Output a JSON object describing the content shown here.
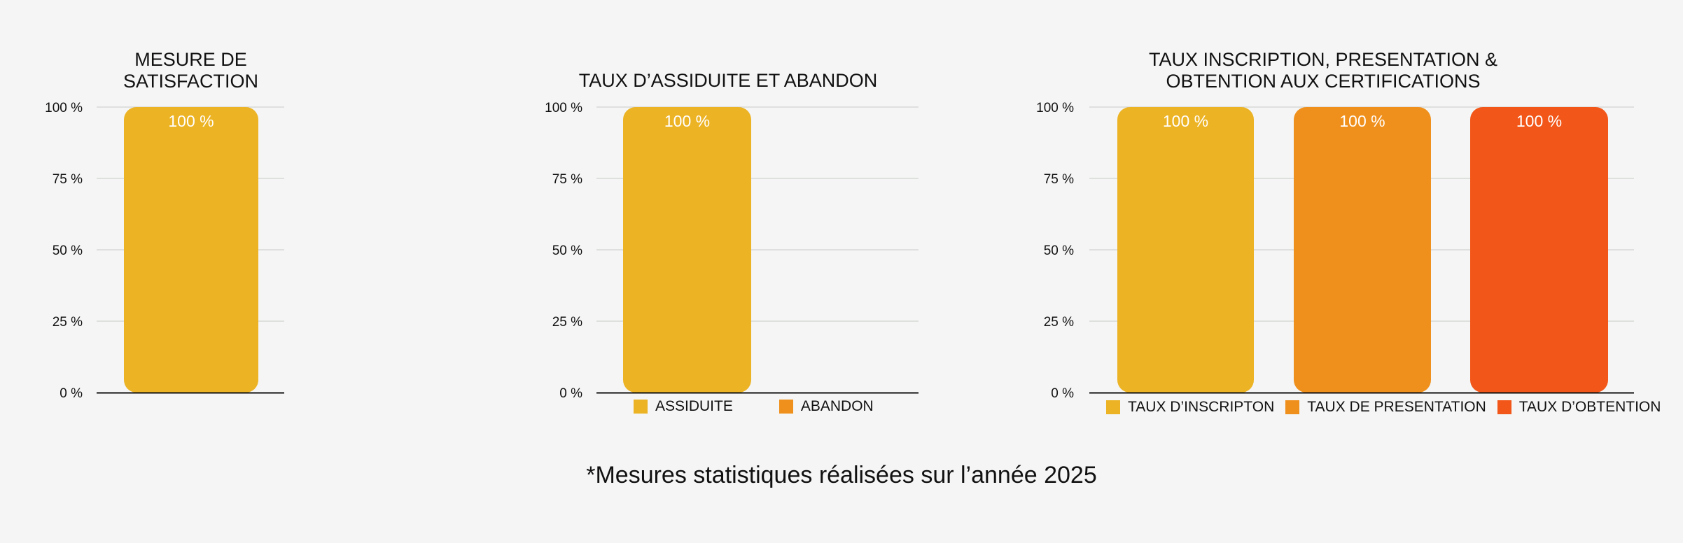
{
  "chart_data": [
    {
      "type": "bar",
      "title": "MESURE DE SATISFACTION",
      "categories": [
        "MESURE DE SATISFACTION"
      ],
      "series": [
        {
          "values": [
            100
          ]
        }
      ],
      "colors": [
        "#ecb324"
      ],
      "ylim": [
        0,
        100
      ],
      "yticks": [
        "0 %",
        "25 %",
        "50 %",
        "75 %",
        "100 %"
      ],
      "data_labels": [
        "100 %"
      ],
      "legend": [],
      "grid": true
    },
    {
      "type": "bar",
      "title": "TAUX D’ASSIDUITE ET ABANDON",
      "categories": [
        "ASSIDUITE",
        "ABANDON"
      ],
      "series": [
        {
          "values": [
            100,
            0
          ]
        }
      ],
      "colors": [
        "#ecb324",
        "#f0901c"
      ],
      "ylim": [
        0,
        100
      ],
      "yticks": [
        "0 %",
        "25 %",
        "50 %",
        "75 %",
        "100 %"
      ],
      "data_labels": [
        "100 %",
        ""
      ],
      "legend": [
        "ASSIDUITE",
        "ABANDON"
      ],
      "legend_position": "bottom",
      "grid": true
    },
    {
      "type": "bar",
      "title": "TAUX INSCRIPTION, PRESENTATION & OBTENTION AUX CERTIFICATIONS",
      "categories": [
        "TAUX D’INSCRIPTON",
        "TAUX DE PRESENTATION",
        "TAUX D’OBTENTION"
      ],
      "series": [
        {
          "values": [
            100,
            100,
            100
          ]
        }
      ],
      "colors": [
        "#ecb324",
        "#f0901c",
        "#f25618"
      ],
      "ylim": [
        0,
        100
      ],
      "yticks": [
        "0 %",
        "25 %",
        "50 %",
        "75 %",
        "100 %"
      ],
      "data_labels": [
        "100 %",
        "100 %",
        "100 %"
      ],
      "legend": [
        "TAUX D’INSCRIPTON",
        "TAUX DE PRESENTATION",
        "TAUX D’OBTENTION"
      ],
      "legend_position": "bottom",
      "grid": true
    }
  ],
  "footnote": "*Mesures statistiques réalisées sur l’année 2025"
}
